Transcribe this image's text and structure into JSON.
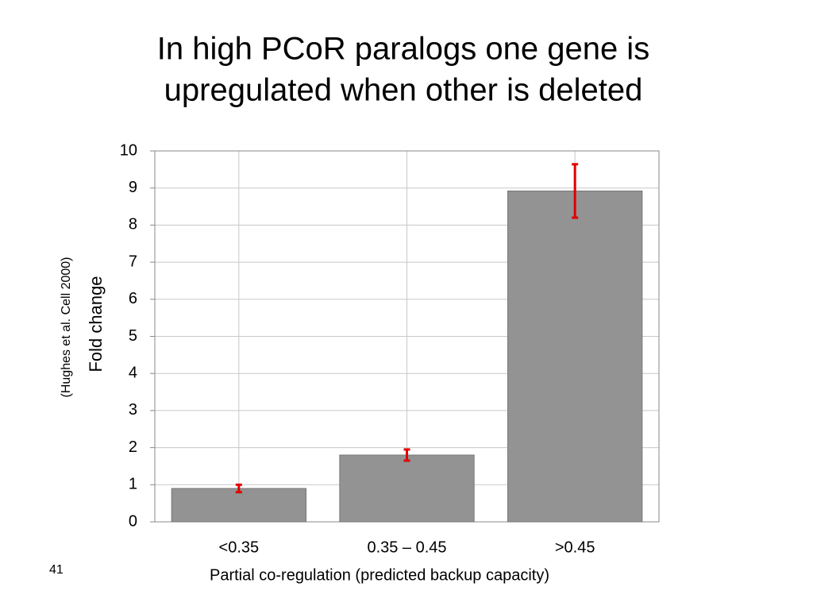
{
  "chart_data": {
    "type": "bar",
    "title": [
      "In high PCoR paralogs one gene is",
      "upregulated when other is deleted"
    ],
    "categories": [
      "<0.35",
      "0.35 – 0.45",
      ">0.45"
    ],
    "values": [
      0.9,
      1.8,
      8.92
    ],
    "errors": [
      0.1,
      0.15,
      0.72
    ],
    "color": "#939393",
    "error_color": "#e00000",
    "ylim": [
      0,
      10
    ],
    "yticks": [
      0,
      1,
      2,
      3,
      4,
      5,
      6,
      7,
      8,
      9,
      10
    ],
    "grid": true,
    "y_label": "Fold change",
    "x_label": "Partial co-regulation (predicted backup capacity)",
    "note": "(Hughes et al. Cell 2000)",
    "page_number": "41"
  }
}
